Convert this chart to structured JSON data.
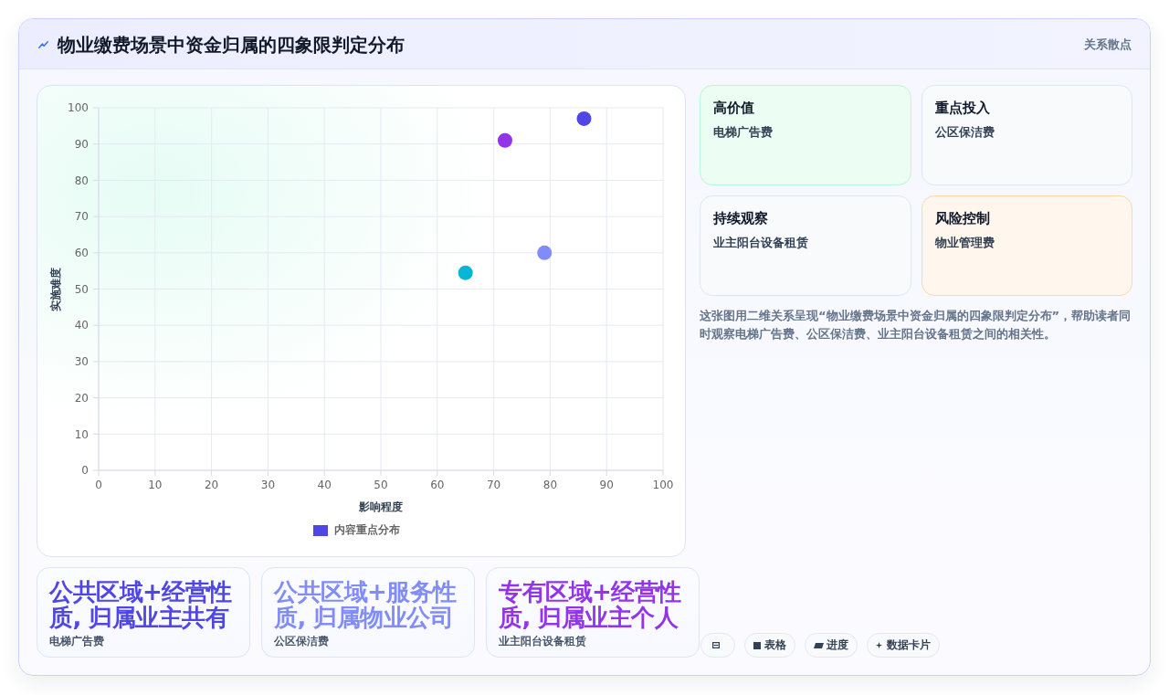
{
  "chart_data": {
    "type": "scatter",
    "title": "物业缴费场景中资金归属的四象限判定分布",
    "subtitle": "关系散点",
    "xlabel": "影响程度",
    "ylabel": "实施难度",
    "series": [
      {
        "name": "内容重点分布",
        "color": "#4f46e5",
        "x": [
          86,
          79,
          72,
          65
        ],
        "values": [
          97,
          60,
          91,
          54.5
        ],
        "colors": [
          "#4f46e5",
          "#818cf8",
          "#9333ea",
          "#06b6d4"
        ]
      }
    ],
    "xlim": [
      0,
      100
    ],
    "xticks": [
      0,
      10,
      20,
      30,
      40,
      50,
      60,
      70,
      80,
      90,
      100
    ],
    "ylim": [
      0,
      100
    ],
    "yticks": [
      0,
      10,
      20,
      30,
      40,
      50,
      60,
      70,
      80,
      90,
      100
    ],
    "grid": true,
    "legend": "bottom",
    "marker": "circle",
    "annotations": [
      "高价值",
      "电梯广告费",
      "重点投入",
      "公区保洁费",
      "持续观察",
      "业主阳台设备租赁",
      "风险控制",
      "物业管理费",
      "这张图用二维关系呈现“物业缴费场景中资金归属的四象限判定分布”，帮助读者同时观察电梯广告费、公区保洁费、业主阳台设备租赁之间的相关性。",
      "公共区域+经营性质, 归属业主共有",
      "电梯广告费",
      "公共区域+服务性质, 归属物业公司",
      "公区保洁费",
      "专有区域+经营性质, 归属业主个人",
      "业主阳台设备租赁",
      "表格",
      "进度",
      "数据卡片"
    ]
  }
}
